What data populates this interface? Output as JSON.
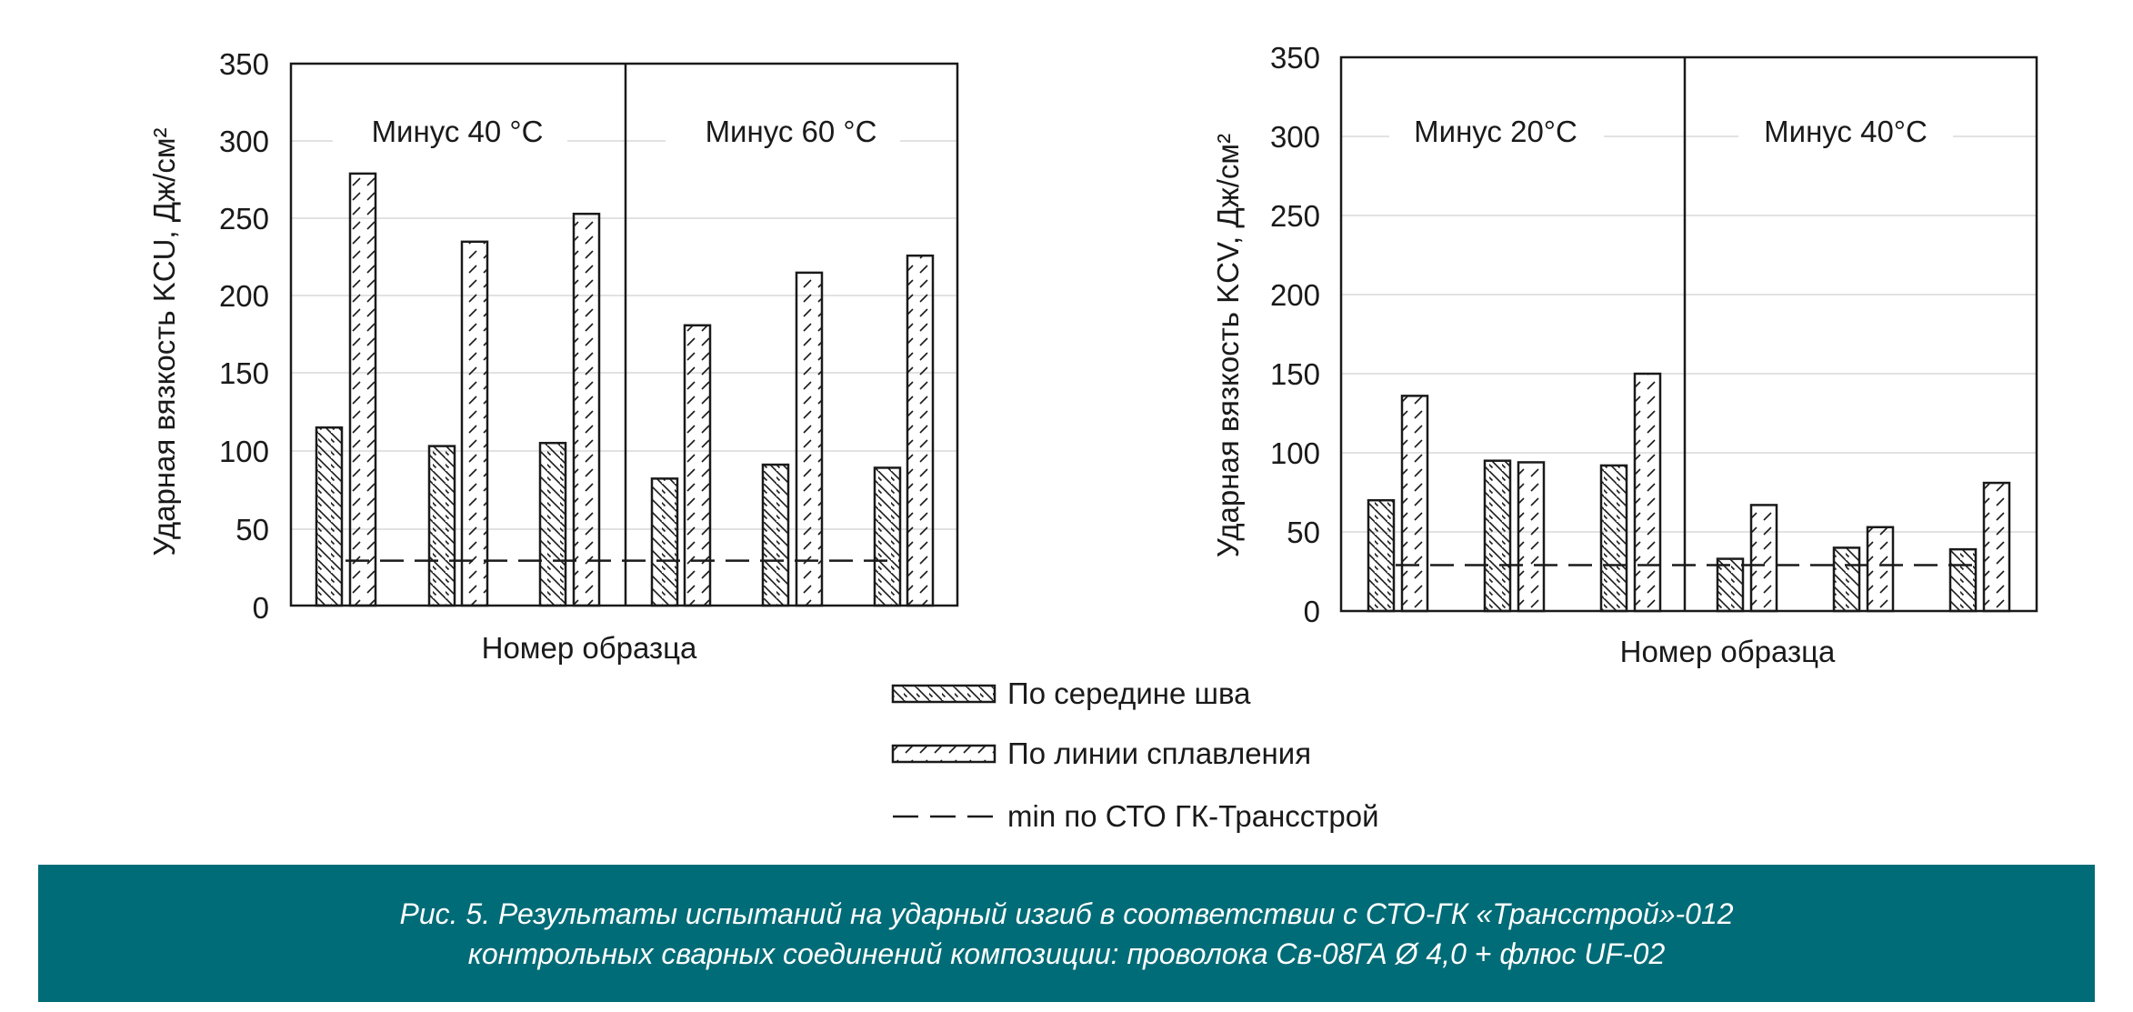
{
  "legend": {
    "center": "По середине шва",
    "fusion": "По линии сплавления",
    "min": "min по СТО ГК-Трансстрой"
  },
  "caption": {
    "line1": "Рис. 5. Результаты испытаний на ударный изгиб в соответствии с СТО-ГК «Трансстрой»-012",
    "line2": "контрольных сварных соединений композиции:  проволока Св-08ГА Ø 4,0 + флюс UF-02"
  },
  "colors": {
    "caption_bg": "#006c77",
    "bars": "#1a1a1a"
  },
  "chart_data": [
    {
      "type": "bar",
      "ylabel": "Ударная вязкость KCU, Дж/см²",
      "xlabel": "Номер образца",
      "ylim": [
        0,
        350
      ],
      "yticks": [
        0,
        50,
        100,
        150,
        200,
        250,
        300,
        350
      ],
      "grid": true,
      "groups": [
        "Минус 40 °С",
        "Минус 60 °С"
      ],
      "series": [
        {
          "name": "По середине шва",
          "values": [
            115,
            103,
            105,
            82,
            91,
            89
          ]
        },
        {
          "name": "По линии сплавления",
          "values": [
            279,
            235,
            253,
            181,
            215,
            226
          ]
        }
      ],
      "min_line": {
        "name": "min по СТО ГК-Трансстрой",
        "value": 29
      }
    },
    {
      "type": "bar",
      "ylabel": "Ударная вязкость KCV, Дж/см²",
      "xlabel": "Номер образца",
      "ylim": [
        0,
        350
      ],
      "yticks": [
        0,
        50,
        100,
        150,
        200,
        250,
        300,
        350
      ],
      "grid": true,
      "groups": [
        "Минус 20°С",
        "Минус 40°С"
      ],
      "series": [
        {
          "name": "По середине шва",
          "values": [
            70,
            95,
            92,
            33,
            40,
            39
          ]
        },
        {
          "name": "По линии сплавления",
          "values": [
            136,
            94,
            150,
            67,
            53,
            81
          ]
        }
      ],
      "min_line": {
        "name": "min по СТО ГК-Трансстрой",
        "value": 29
      }
    }
  ]
}
